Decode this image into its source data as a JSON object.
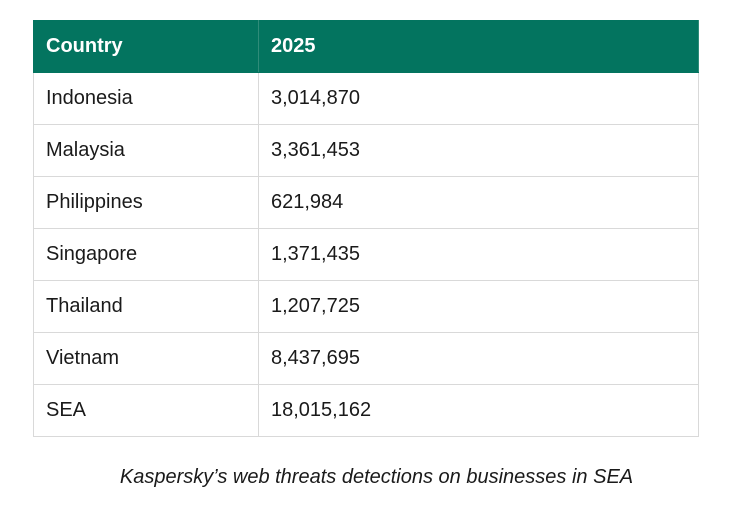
{
  "table": {
    "header": [
      "Country",
      "2025"
    ],
    "rows": [
      [
        "Indonesia",
        "3,014,870"
      ],
      [
        "Malaysia",
        "3,361,453"
      ],
      [
        "Philippines",
        "621,984"
      ],
      [
        "Singapore",
        "1,371,435"
      ],
      [
        "Thailand",
        "1,207,725"
      ],
      [
        "Vietnam",
        "8,437,695"
      ],
      [
        "SEA",
        "18,015,162"
      ]
    ]
  },
  "caption": "Kaspersky’s web threats detections on businesses in SEA"
}
